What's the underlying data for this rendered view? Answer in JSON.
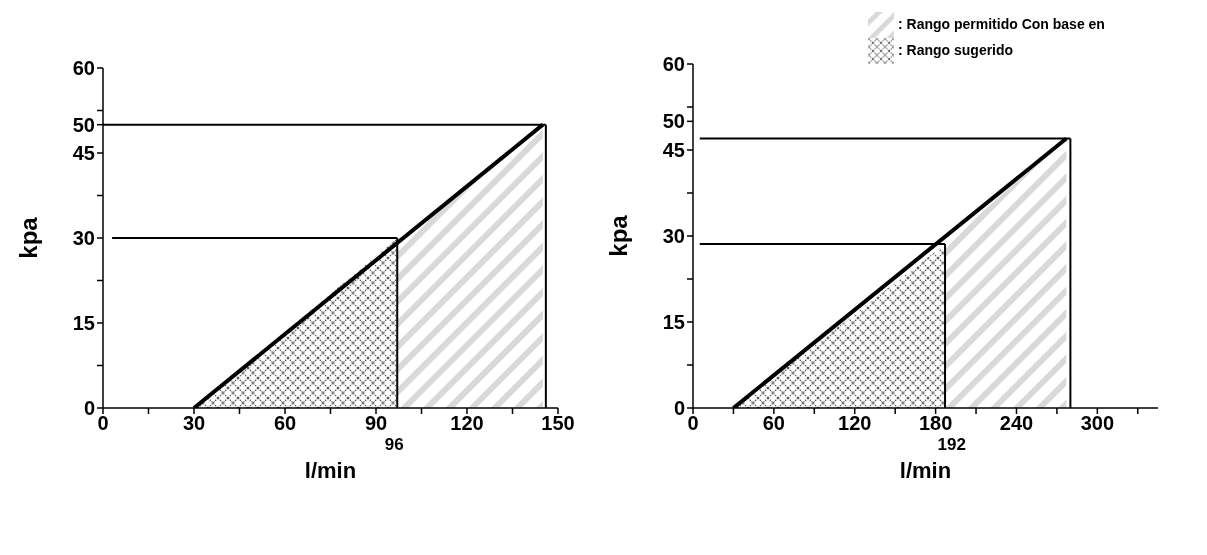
{
  "chart_data": [
    {
      "type": "line",
      "xlabel": "l/min",
      "ylabel": "kpa",
      "xlim": [
        0,
        150
      ],
      "ylim": [
        0,
        60
      ],
      "xticks": [
        0,
        {
          "value": 15,
          "label": null
        },
        30,
        {
          "value": 45,
          "label": null
        },
        60,
        {
          "value": 75,
          "label": null
        },
        90,
        {
          "value": 105,
          "label": null
        },
        120,
        {
          "value": 135,
          "label": null
        },
        150
      ],
      "yticks": [
        0,
        {
          "value": 7.5,
          "label": null
        },
        15,
        {
          "value": 22.5,
          "label": null
        },
        30,
        {
          "value": 37.5,
          "label": null
        },
        45,
        50,
        {
          "value": 52.5,
          "label": null
        },
        60
      ],
      "series": [
        {
          "type": "area",
          "color": "#555555",
          "x": [
            30,
            97
          ],
          "values": [
            0,
            30
          ]
        },
        {
          "type": "area",
          "color": "#d9d9d9",
          "x": [
            97,
            145
          ],
          "values": [
            30,
            50
          ]
        },
        {
          "type": "line",
          "color": "#000000",
          "x": [
            30,
            145
          ],
          "values": [
            0,
            50
          ]
        },
        {
          "type": "line",
          "color": "#000000",
          "x": [
            3,
            97
          ],
          "values": [
            30,
            30
          ]
        },
        {
          "type": "line",
          "color": "#000000",
          "x": [
            0,
            146
          ],
          "values": [
            50,
            50
          ]
        },
        {
          "type": "line",
          "color": "#000000",
          "x": [
            97,
            97
          ],
          "values": [
            0,
            30
          ]
        },
        {
          "type": "line",
          "color": "#000000",
          "x": [
            146,
            146
          ],
          "values": [
            0,
            50
          ]
        }
      ],
      "annotations": [
        {
          "text": "96",
          "x": 96,
          "y": 0
        }
      ]
    },
    {
      "type": "line",
      "xlabel": "l/min",
      "ylabel": "kpa",
      "xlim": [
        0,
        345
      ],
      "ylim": [
        0,
        60
      ],
      "legend": "top",
      "xticks": [
        0,
        {
          "value": 30,
          "label": null
        },
        60,
        {
          "value": 90,
          "label": null
        },
        120,
        {
          "value": 150,
          "label": null
        },
        180,
        {
          "value": 210,
          "label": null
        },
        240,
        {
          "value": 270,
          "label": null
        },
        300,
        {
          "value": 330,
          "label": null
        }
      ],
      "yticks": [
        0,
        {
          "value": 7.5,
          "label": null
        },
        15,
        {
          "value": 22.5,
          "label": null
        },
        30,
        {
          "value": 37.5,
          "label": null
        },
        45,
        50,
        {
          "value": 52.5,
          "label": null
        },
        60
      ],
      "series": [
        {
          "name": ": Rango sugerido",
          "type": "area",
          "color": "#555555",
          "x": [
            30,
            187
          ],
          "values": [
            0,
            28.6
          ]
        },
        {
          "name": ": Rango permitido Con base en",
          "type": "area",
          "color": "#d9d9d9",
          "x": [
            187,
            277
          ],
          "values": [
            28.6,
            47
          ]
        },
        {
          "type": "line",
          "color": "#000000",
          "x": [
            30,
            277
          ],
          "values": [
            0,
            47
          ]
        },
        {
          "type": "line",
          "color": "#000000",
          "x": [
            5,
            187
          ],
          "values": [
            28.6,
            28.6
          ]
        },
        {
          "type": "line",
          "color": "#000000",
          "x": [
            5,
            280
          ],
          "values": [
            47,
            47
          ]
        },
        {
          "type": "line",
          "color": "#000000",
          "x": [
            187,
            187
          ],
          "values": [
            0,
            28.6
          ]
        },
        {
          "type": "line",
          "color": "#000000",
          "x": [
            280,
            280
          ],
          "values": [
            0,
            47
          ]
        }
      ],
      "annotations": [
        {
          "text": "192",
          "x": 192,
          "y": 0
        }
      ]
    }
  ]
}
